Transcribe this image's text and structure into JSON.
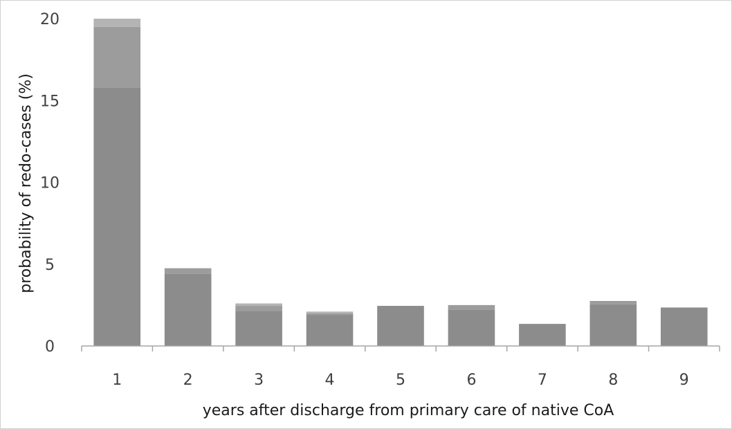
{
  "chart_data": {
    "type": "bar",
    "stacked": true,
    "title": "",
    "xlabel": "years after discharge from primary care of native CoA",
    "ylabel": "probability of redo-cases (%)",
    "categories": [
      "1",
      "2",
      "3",
      "4",
      "5",
      "6",
      "7",
      "8",
      "9"
    ],
    "ylim": [
      0,
      20
    ],
    "yticks": [
      "0",
      "5",
      "10",
      "15",
      "20"
    ],
    "grid": false,
    "legend": "none",
    "series": [
      {
        "color": "#8c8c8c",
        "values": [
          15.8,
          4.4,
          2.15,
          1.9,
          2.45,
          2.2,
          1.35,
          2.55,
          2.35
        ]
      },
      {
        "color": "#9c9c9c",
        "values": [
          3.7,
          0.35,
          0.3,
          0.1,
          0.0,
          0.3,
          0.0,
          0.2,
          0.0
        ]
      },
      {
        "color": "#b4b4b4",
        "values": [
          0.5,
          0.0,
          0.15,
          0.1,
          0.0,
          0.0,
          0.0,
          0.0,
          0.0
        ]
      }
    ]
  }
}
